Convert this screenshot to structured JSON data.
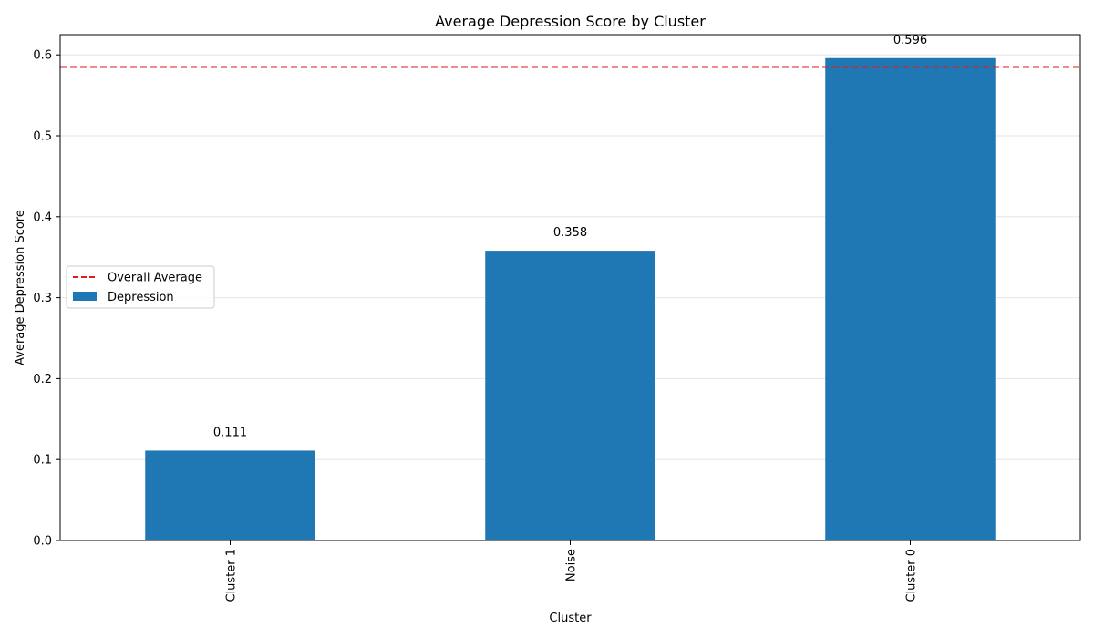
{
  "chart_data": {
    "type": "bar",
    "title": "Average Depression Score by Cluster",
    "xlabel": "Cluster",
    "ylabel": "Average Depression Score",
    "categories": [
      "Cluster 1",
      "Noise",
      "Cluster 0"
    ],
    "series": [
      {
        "name": "Depression",
        "values": [
          0.111,
          0.358,
          0.596
        ],
        "color": "#1f77b4"
      }
    ],
    "data_labels": [
      "0.111",
      "0.358",
      "0.596"
    ],
    "reference_line": {
      "name": "Overall Average",
      "value": 0.585,
      "color": "#e31a1c",
      "style": "dashed"
    },
    "ylim": [
      0,
      0.625
    ],
    "yticks": [
      0.0,
      0.1,
      0.2,
      0.3,
      0.4,
      0.5,
      0.6
    ],
    "ytick_labels": [
      "0.0",
      "0.1",
      "0.2",
      "0.3",
      "0.4",
      "0.5",
      "0.6"
    ],
    "grid": "y",
    "legend": {
      "position": "center-left",
      "entries": [
        "Overall Average",
        "Depression"
      ]
    }
  }
}
